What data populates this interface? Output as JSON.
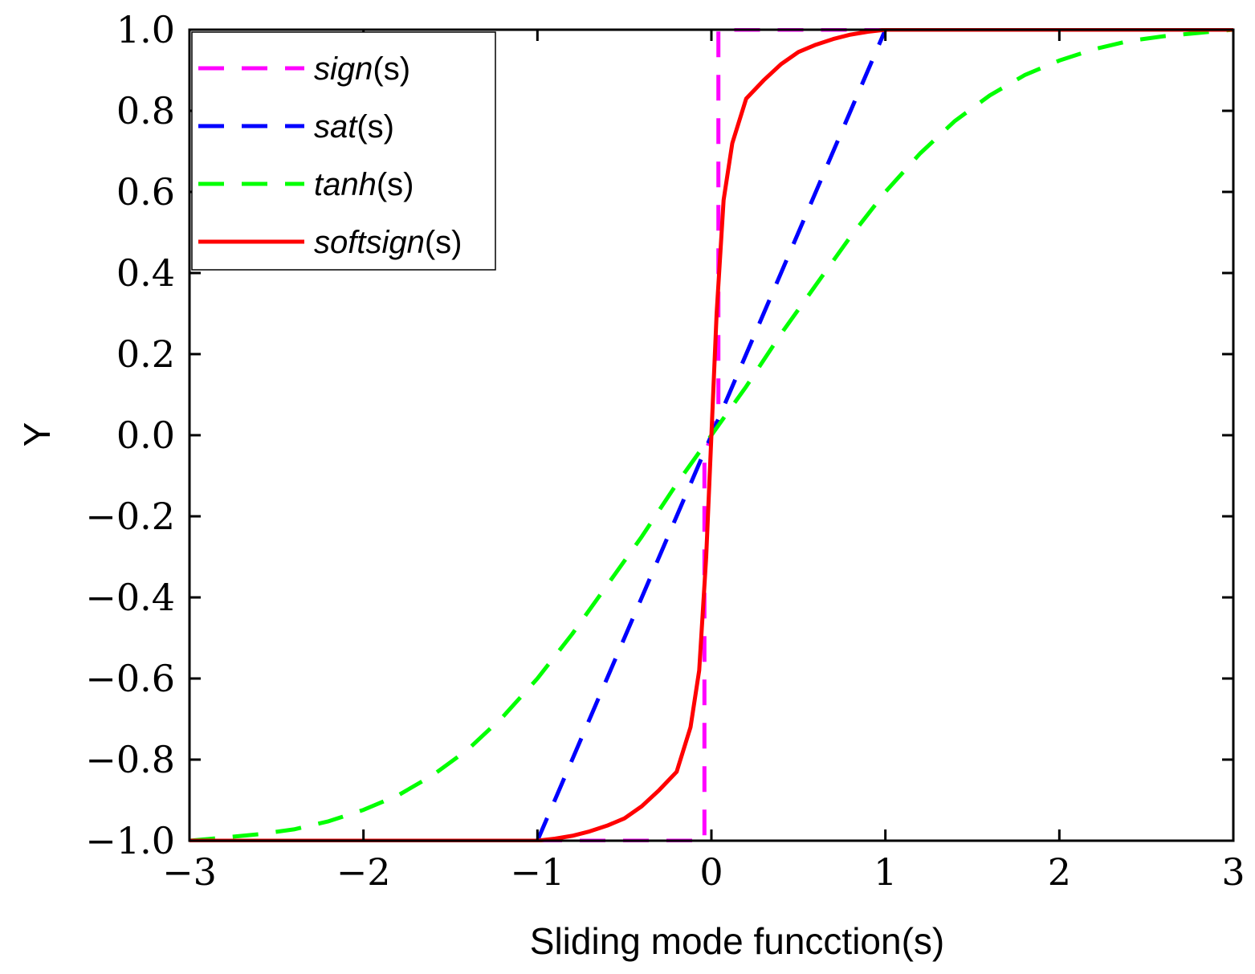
{
  "chart_data": {
    "type": "line",
    "title": "",
    "xlabel": "Sliding mode funcction(s)",
    "ylabel": "Y",
    "xlim": [
      -3,
      3
    ],
    "ylim": [
      -1.0,
      1.0
    ],
    "xticks": [
      -3,
      -2,
      -1,
      0,
      1,
      2,
      3
    ],
    "xtick_labels": [
      "−3",
      "−2",
      "−1",
      "0",
      "1",
      "2",
      "3"
    ],
    "yticks": [
      1.0,
      0.8,
      0.6,
      0.4,
      0.2,
      0.0,
      -0.2,
      -0.4,
      -0.6,
      -0.8,
      -1.0
    ],
    "ytick_labels": [
      "1.0",
      "0.8",
      "0.6",
      "0.4",
      "0.2",
      "0.0",
      "−0.2",
      "−0.4",
      "−0.6",
      "−0.8",
      "−1.0"
    ],
    "grid": false,
    "legend_position": "top-left",
    "series": [
      {
        "name": "sign(s)",
        "name_italic": "sign",
        "name_suffix": "(s)",
        "color": "#ff00ff",
        "style": "dashed",
        "x": [
          -3,
          -0.04,
          -0.04,
          0.04,
          0.04,
          3
        ],
        "y": [
          -1,
          -1,
          -0.05,
          0.05,
          1,
          1
        ]
      },
      {
        "name": "sat(s)",
        "name_italic": "sat",
        "name_suffix": "(s)",
        "color": "#0000ff",
        "style": "dashed",
        "x": [
          -3,
          -1,
          0,
          1,
          3
        ],
        "y": [
          -1,
          -1,
          0,
          1,
          1
        ]
      },
      {
        "name": "tanh(s)",
        "name_italic": "tanh",
        "name_suffix": "(s)",
        "color": "#00ff00",
        "style": "dashed",
        "x": [
          -3,
          -2.8,
          -2.6,
          -2.4,
          -2.2,
          -2,
          -1.8,
          -1.6,
          -1.4,
          -1.2,
          -1,
          -0.8,
          -0.6,
          -0.4,
          -0.2,
          0,
          0.2,
          0.4,
          0.6,
          0.8,
          1,
          1.2,
          1.4,
          1.6,
          1.8,
          2,
          2.2,
          2.4,
          2.6,
          2.8,
          3
        ],
        "y": [
          -1.0,
          -0.992,
          -0.984,
          -0.972,
          -0.952,
          -0.924,
          -0.888,
          -0.838,
          -0.775,
          -0.695,
          -0.6,
          -0.49,
          -0.37,
          -0.25,
          -0.12,
          0.0,
          0.12,
          0.25,
          0.37,
          0.49,
          0.6,
          0.695,
          0.775,
          0.838,
          0.888,
          0.924,
          0.952,
          0.972,
          0.984,
          0.992,
          1.0
        ]
      },
      {
        "name": "softsign(s)",
        "name_italic": "softsign",
        "name_suffix": "(s)",
        "color": "#ff0000",
        "style": "solid",
        "x": [
          -3,
          -1,
          -0.9,
          -0.8,
          -0.7,
          -0.6,
          -0.5,
          -0.4,
          -0.3,
          -0.2,
          -0.12,
          -0.07,
          -0.03,
          0,
          0.03,
          0.07,
          0.12,
          0.2,
          0.3,
          0.4,
          0.5,
          0.6,
          0.7,
          0.8,
          0.9,
          1,
          3
        ],
        "y": [
          -1.0,
          -1.0,
          -0.995,
          -0.988,
          -0.977,
          -0.963,
          -0.945,
          -0.915,
          -0.875,
          -0.83,
          -0.72,
          -0.58,
          -0.3,
          0.0,
          0.3,
          0.58,
          0.72,
          0.83,
          0.875,
          0.915,
          0.945,
          0.963,
          0.977,
          0.988,
          0.995,
          1.0,
          1.0
        ]
      }
    ]
  }
}
